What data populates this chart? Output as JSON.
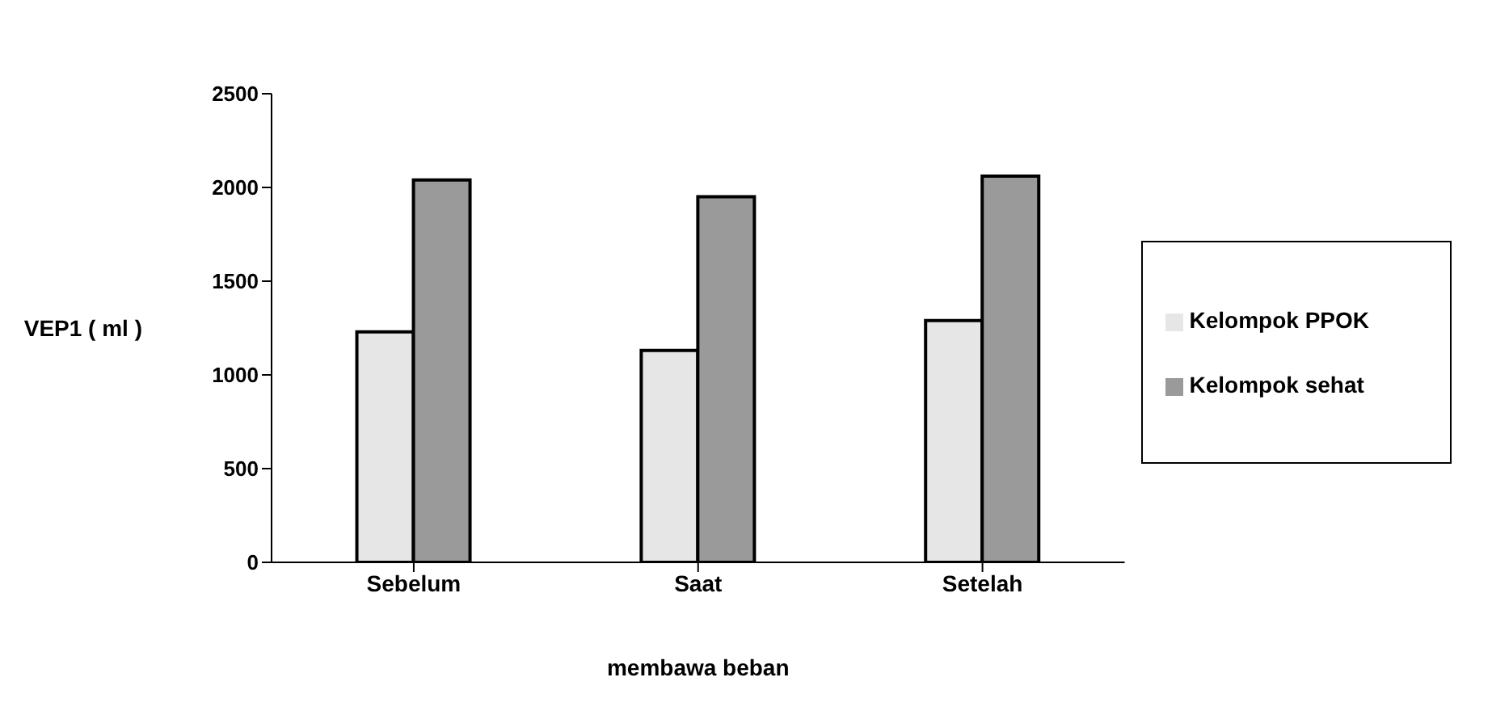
{
  "chart_data": {
    "type": "bar",
    "xlabel": "membawa beban",
    "ylabel": "VEP1 ( ml )",
    "categories": [
      "Sebelum",
      "Saat",
      "Setelah"
    ],
    "series": [
      {
        "name": "Kelompok PPOK",
        "color": "#e6e6e6",
        "values": [
          1230,
          1130,
          1290
        ]
      },
      {
        "name": "Kelompok sehat",
        "color": "#9a9a9a",
        "values": [
          2040,
          1950,
          2060
        ]
      }
    ],
    "ylim": [
      0,
      2500
    ],
    "yticks": [
      0,
      500,
      1000,
      1500,
      2000,
      2500
    ],
    "grid": false,
    "legend": "right"
  }
}
